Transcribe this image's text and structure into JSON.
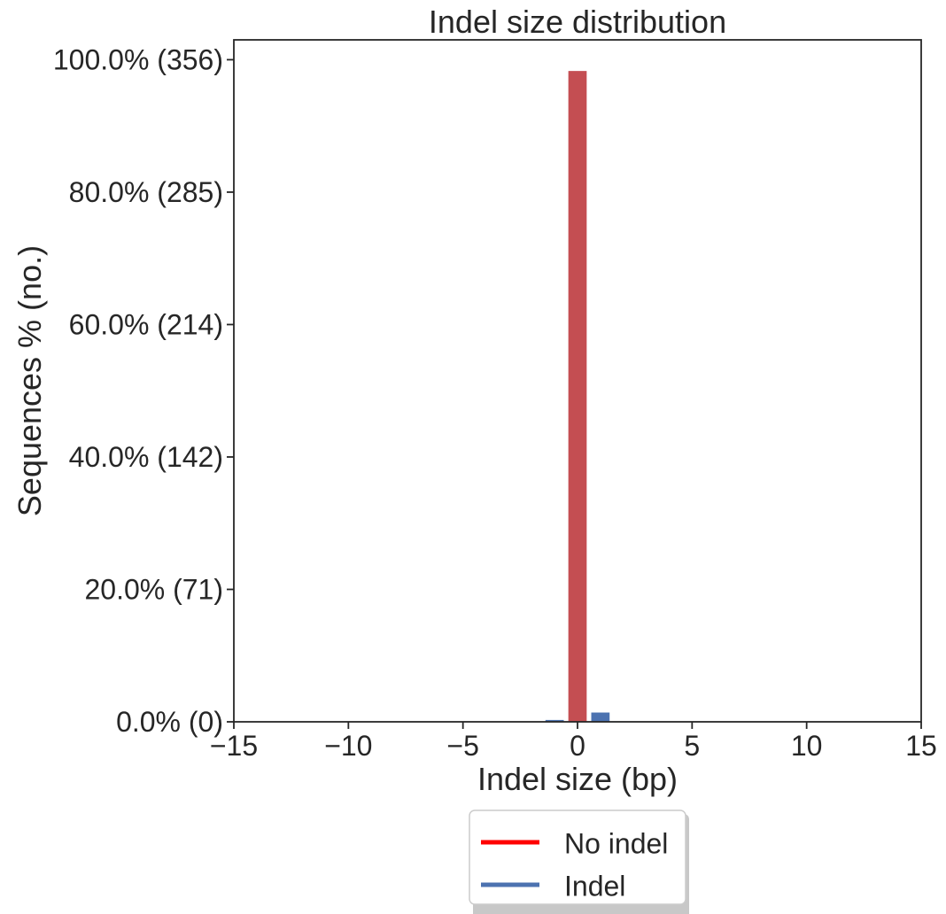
{
  "chart_data": {
    "type": "bar",
    "title": "Indel size distribution",
    "xlabel": "Indel size (bp)",
    "ylabel": "Sequences % (no.)",
    "xlim": [
      -15,
      15
    ],
    "ylim": [
      0,
      103
    ],
    "grid": false,
    "x_ticks": [
      -15,
      -10,
      -5,
      0,
      5,
      10,
      15
    ],
    "x_tick_labels": [
      "−15",
      "−10",
      "−5",
      "0",
      "5",
      "10",
      "15"
    ],
    "y_ticks": [
      0,
      20,
      40,
      60,
      80,
      100
    ],
    "y_tick_labels": [
      "0.0% (0)",
      "20.0% (71)",
      "40.0% (142)",
      "60.0% (214)",
      "80.0% (285)",
      "100.0% (356)"
    ],
    "series": [
      {
        "name": "No indel",
        "color": "#c44e52",
        "line_color": "#ff0000",
        "x": [
          0
        ],
        "values": [
          98.3
        ]
      },
      {
        "name": "Indel",
        "color": "#4c72b0",
        "line_color": "#4c72b0",
        "x": [
          -1,
          1
        ],
        "values": [
          0.28,
          1.4
        ]
      }
    ],
    "legend": {
      "placement": "bottom-center",
      "entries": [
        "No indel",
        "Indel"
      ]
    }
  }
}
